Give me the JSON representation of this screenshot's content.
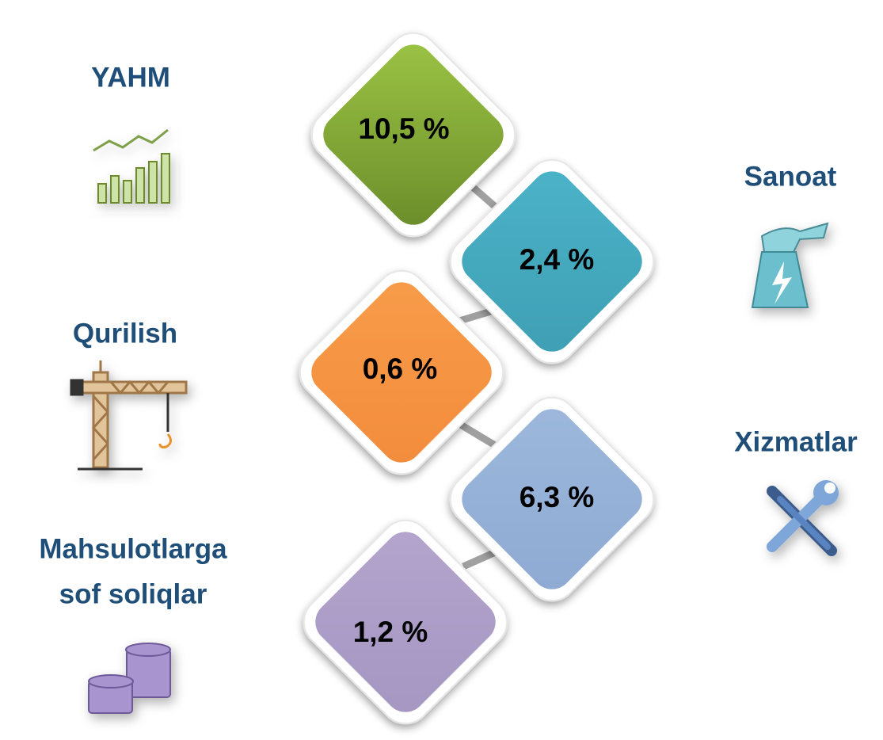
{
  "items": [
    {
      "label": "YAHM",
      "value": "10,5 %"
    },
    {
      "label": "Sanoat",
      "value": "2,4 %"
    },
    {
      "label": "Qurilish",
      "value": "0,6 %"
    },
    {
      "label": "Xizmatlar",
      "value": "6,3 %"
    },
    {
      "label": [
        "Mahsulotlarga",
        "sof soliqlar"
      ],
      "value": "1,2 %"
    }
  ]
}
